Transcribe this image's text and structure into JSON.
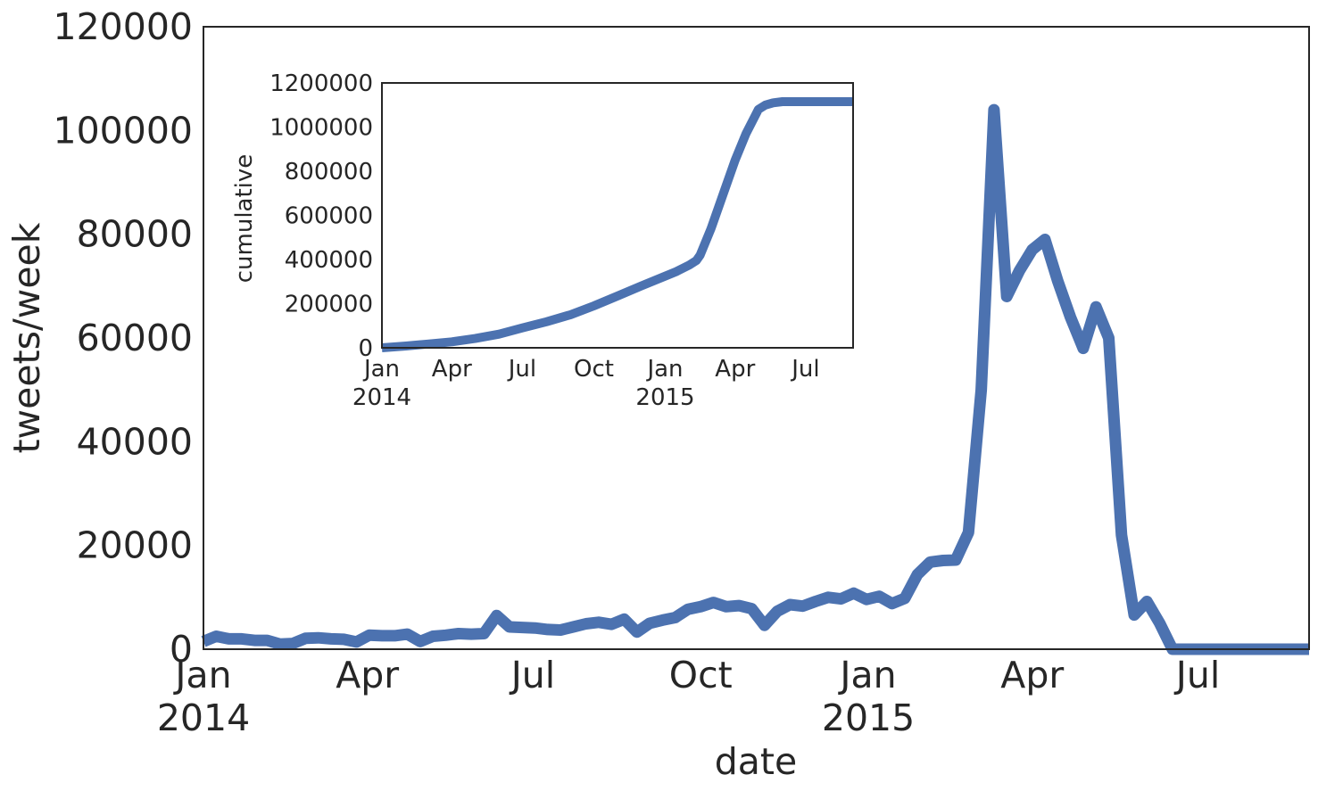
{
  "colors": {
    "line": "#4c72b0",
    "axis": "#262626",
    "background": "#ffffff"
  },
  "chart_data": [
    {
      "type": "line",
      "role": "main",
      "title": "",
      "xlabel": "date",
      "ylabel": "tweets/week",
      "xlim": [
        "2014-01-01",
        "2015-08-31"
      ],
      "ylim": [
        0,
        120000
      ],
      "grid": false,
      "legend": "none",
      "yticks": [
        "0",
        "20000",
        "40000",
        "60000",
        "80000",
        "100000",
        "120000"
      ],
      "xticks": [
        {
          "date": "2014-01-01",
          "label": "Jan",
          "year": "2014"
        },
        {
          "date": "2014-04-01",
          "label": "Apr",
          "year": ""
        },
        {
          "date": "2014-07-01",
          "label": "Jul",
          "year": ""
        },
        {
          "date": "2014-10-01",
          "label": "Oct",
          "year": ""
        },
        {
          "date": "2015-01-01",
          "label": "Jan",
          "year": "2015"
        },
        {
          "date": "2015-04-01",
          "label": "Apr",
          "year": ""
        },
        {
          "date": "2015-07-01",
          "label": "Jul",
          "year": ""
        }
      ],
      "series": [
        {
          "x": [
            "2014-01-01",
            "2014-01-08",
            "2014-01-15",
            "2014-01-22",
            "2014-01-29",
            "2014-02-05",
            "2014-02-12",
            "2014-02-19",
            "2014-02-26",
            "2014-03-05",
            "2014-03-12",
            "2014-03-19",
            "2014-03-26",
            "2014-04-02",
            "2014-04-09",
            "2014-04-16",
            "2014-04-23",
            "2014-04-30",
            "2014-05-07",
            "2014-05-14",
            "2014-05-21",
            "2014-05-28",
            "2014-06-04",
            "2014-06-11",
            "2014-06-18",
            "2014-06-25",
            "2014-07-02",
            "2014-07-09",
            "2014-07-16",
            "2014-07-23",
            "2014-07-30",
            "2014-08-06",
            "2014-08-13",
            "2014-08-20",
            "2014-08-27",
            "2014-09-03",
            "2014-09-10",
            "2014-09-17",
            "2014-09-24",
            "2014-10-01",
            "2014-10-08",
            "2014-10-15",
            "2014-10-22",
            "2014-10-29",
            "2014-11-05",
            "2014-11-12",
            "2014-11-19",
            "2014-11-26",
            "2014-12-03",
            "2014-12-10",
            "2014-12-17",
            "2014-12-24",
            "2014-12-31",
            "2015-01-07",
            "2015-01-14",
            "2015-01-21",
            "2015-01-28",
            "2015-02-04",
            "2015-02-11",
            "2015-02-18",
            "2015-02-25",
            "2015-03-04",
            "2015-03-11",
            "2015-03-18",
            "2015-03-25",
            "2015-04-01",
            "2015-04-08",
            "2015-04-15",
            "2015-04-22",
            "2015-04-29",
            "2015-05-06",
            "2015-05-13",
            "2015-05-20",
            "2015-05-27",
            "2015-06-03",
            "2015-06-10",
            "2015-06-17",
            "2015-06-24",
            "2015-07-01",
            "2015-07-08",
            "2015-07-15",
            "2015-07-22",
            "2015-07-29",
            "2015-08-05",
            "2015-08-12",
            "2015-08-19",
            "2015-08-26",
            "2015-08-31"
          ],
          "y": [
            1500,
            2500,
            2000,
            2000,
            1700,
            1700,
            1000,
            1100,
            2100,
            2200,
            2000,
            1900,
            1400,
            2700,
            2600,
            2600,
            2900,
            1500,
            2500,
            2700,
            3000,
            2900,
            3000,
            6500,
            4300,
            4200,
            4100,
            3800,
            3700,
            4300,
            4900,
            5200,
            4800,
            5800,
            3300,
            5000,
            5600,
            6100,
            7700,
            8200,
            9000,
            8200,
            8400,
            7800,
            4600,
            7300,
            8600,
            8300,
            9200,
            10000,
            9700,
            10800,
            9600,
            10200,
            8800,
            9800,
            14400,
            16800,
            17100,
            17200,
            22500,
            50000,
            104000,
            68000,
            73000,
            77000,
            79000,
            71000,
            64000,
            58000,
            66000,
            60000,
            22000,
            6600,
            9200,
            5000,
            0,
            0,
            0,
            0,
            0,
            0,
            0,
            0,
            0,
            0,
            0,
            0
          ]
        }
      ]
    },
    {
      "type": "line",
      "role": "inset",
      "title": "",
      "xlabel": "",
      "ylabel": "cumulative",
      "xlim": [
        "2014-01-01",
        "2015-08-31"
      ],
      "ylim": [
        0,
        1200000
      ],
      "grid": false,
      "legend": "none",
      "yticks": [
        "0",
        "200000",
        "400000",
        "600000",
        "800000",
        "1000000",
        "1200000"
      ],
      "xticks": [
        {
          "date": "2014-01-01",
          "label": "Jan",
          "year": "2014"
        },
        {
          "date": "2014-04-01",
          "label": "Apr",
          "year": ""
        },
        {
          "date": "2014-07-01",
          "label": "Jul",
          "year": ""
        },
        {
          "date": "2014-10-01",
          "label": "Oct",
          "year": ""
        },
        {
          "date": "2015-01-01",
          "label": "Jan",
          "year": "2015"
        },
        {
          "date": "2015-04-01",
          "label": "Apr",
          "year": ""
        },
        {
          "date": "2015-07-01",
          "label": "Jul",
          "year": ""
        }
      ],
      "series": [
        {
          "x": [
            "2014-01-01",
            "2014-02-01",
            "2014-03-01",
            "2014-04-01",
            "2014-05-01",
            "2014-06-01",
            "2014-07-01",
            "2014-08-01",
            "2014-09-01",
            "2014-10-01",
            "2014-11-01",
            "2014-12-01",
            "2015-01-01",
            "2015-01-15",
            "2015-02-01",
            "2015-02-10",
            "2015-02-15",
            "2015-03-01",
            "2015-03-15",
            "2015-04-01",
            "2015-04-15",
            "2015-05-01",
            "2015-05-10",
            "2015-05-20",
            "2015-06-01",
            "2015-06-15",
            "2015-07-01",
            "2015-08-31"
          ],
          "y": [
            0,
            8000,
            17000,
            27000,
            42000,
            62000,
            90000,
            118000,
            150000,
            190000,
            235000,
            280000,
            325000,
            345000,
            375000,
            395000,
            420000,
            540000,
            680000,
            850000,
            970000,
            1080000,
            1100000,
            1110000,
            1115000,
            1115000,
            1115000,
            1115000
          ]
        }
      ]
    }
  ]
}
